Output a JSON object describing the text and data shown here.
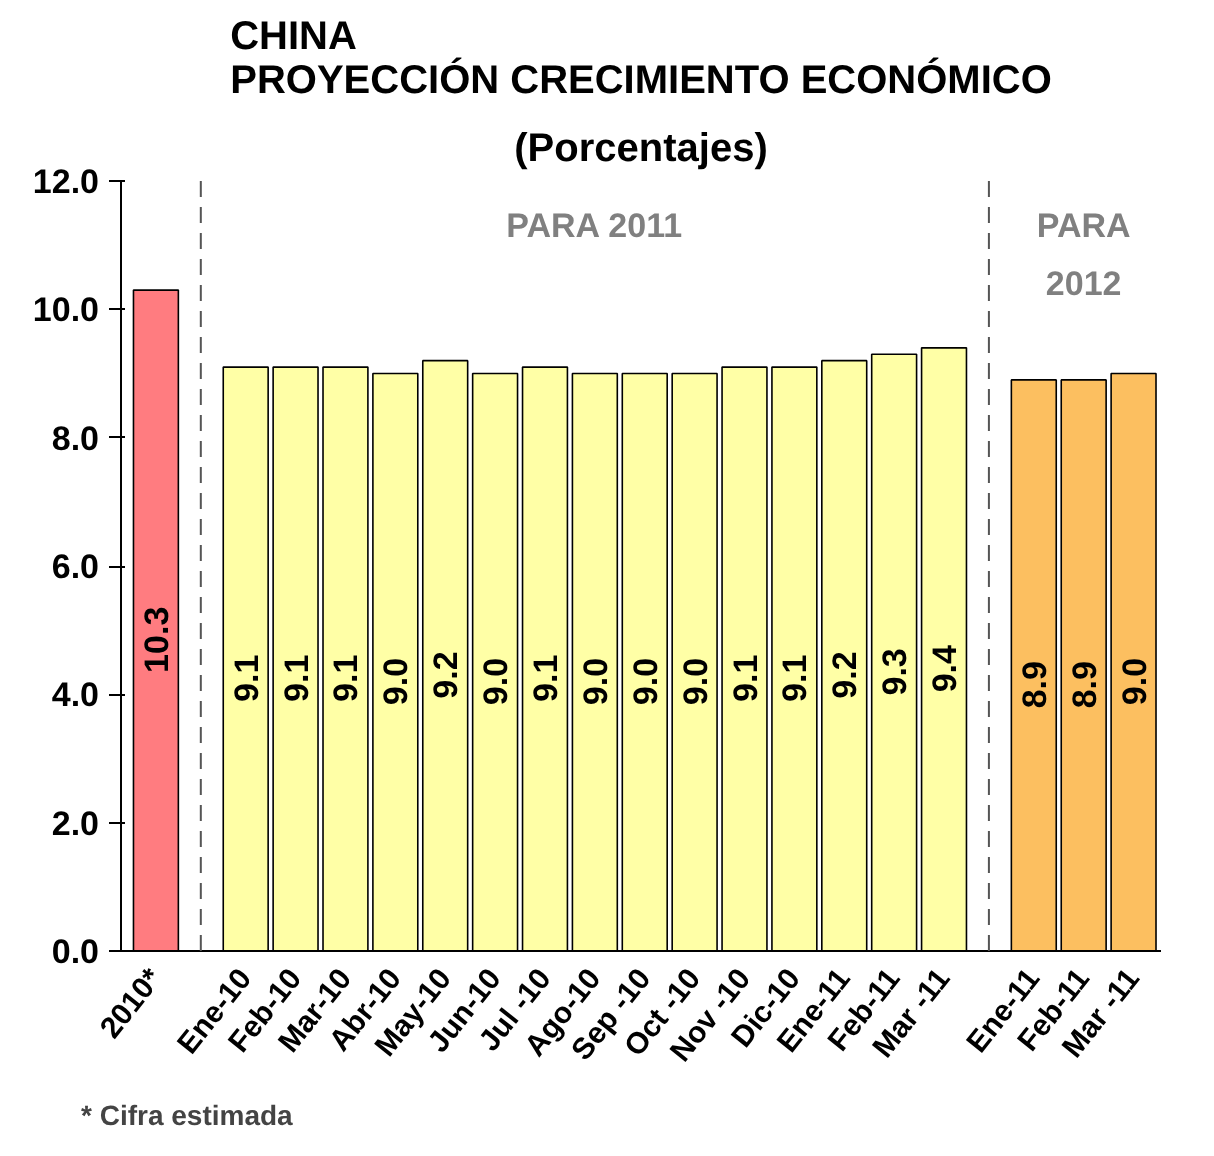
{
  "chart_data": {
    "type": "bar",
    "title": "CHINA\nPROYECCIÓN CRECIMIENTO ECONÓMICO",
    "subtitle": "(Porcentajes)",
    "categories": [
      "2010*",
      "Ene-10",
      "Feb-10",
      "Mar-10",
      "Abr-10",
      "May-10",
      "Jun-10",
      "Jul -10",
      "Ago-10",
      "Sep -10",
      "Oct -10",
      "Nov -10",
      "Dic-10",
      "Ene-11",
      "Feb-11",
      "Mar -11",
      "Ene-11",
      "Feb-11",
      "Mar -11"
    ],
    "values": [
      10.3,
      9.1,
      9.1,
      9.1,
      9.0,
      9.2,
      9.0,
      9.1,
      9.0,
      9.0,
      9.0,
      9.1,
      9.1,
      9.2,
      9.3,
      9.4,
      8.9,
      8.9,
      9.0
    ],
    "colors": [
      "#ff7c80",
      "#ffffa6",
      "#ffffa6",
      "#ffffa6",
      "#ffffa6",
      "#ffffa6",
      "#ffffa6",
      "#ffffa6",
      "#ffffa6",
      "#ffffa6",
      "#ffffa6",
      "#ffffa6",
      "#ffffa6",
      "#ffffa6",
      "#ffffa6",
      "#ffffa6",
      "#fcbf60",
      "#fcbf60",
      "#fcbf60"
    ],
    "value_labels": [
      "10.3",
      "9.1",
      "9.1",
      "9.1",
      "9.0",
      "9.2",
      "9.0",
      "9.1",
      "9.0",
      "9.0",
      "9.0",
      "9.1",
      "9.1",
      "9.2",
      "9.3",
      "9.4",
      "8.9",
      "8.9",
      "9.0"
    ],
    "ylim": [
      0,
      12
    ],
    "yticks": [
      {
        "value": 0,
        "label": "0.0"
      },
      {
        "value": 2,
        "label": "2.0"
      },
      {
        "value": 4,
        "label": "4.0"
      },
      {
        "value": 6,
        "label": "6.0"
      },
      {
        "value": 8,
        "label": "8.0"
      },
      {
        "value": 10,
        "label": "10.0"
      },
      {
        "value": 12,
        "label": "12.0"
      }
    ],
    "grid": false,
    "annotations": [
      "PARA 2011",
      "PARA\n2012",
      "* Cifra estimada"
    ]
  }
}
